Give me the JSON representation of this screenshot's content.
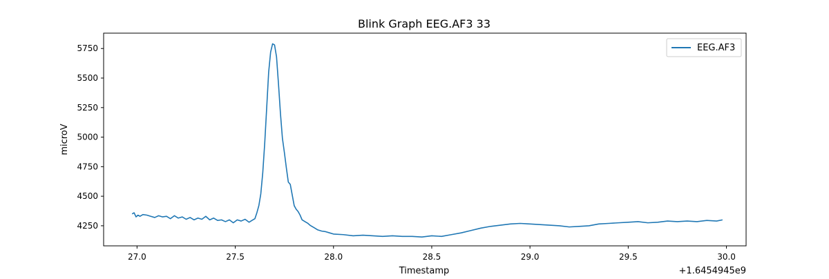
{
  "chart_data": {
    "type": "line",
    "title": "Blink Graph EEG.AF3 33",
    "xlabel": "Timestamp",
    "ylabel": "microV",
    "x_offset_label": "+1.6454945e9",
    "xlim": [
      26.83,
      30.1
    ],
    "ylim": [
      4080,
      5880
    ],
    "x_ticks": [
      27.0,
      27.5,
      28.0,
      28.5,
      29.0,
      29.5,
      30.0
    ],
    "x_tick_labels": [
      "27.0",
      "27.5",
      "28.0",
      "28.5",
      "29.0",
      "29.5",
      "30.0"
    ],
    "y_ticks": [
      4250,
      4500,
      4750,
      5000,
      5250,
      5500,
      5750
    ],
    "y_tick_labels": [
      "4250",
      "4500",
      "4750",
      "5000",
      "5250",
      "5500",
      "5750"
    ],
    "grid": false,
    "legend_position": "top-right",
    "colors": {
      "series": "#1f77b4"
    },
    "series": [
      {
        "name": "EEG.AF3",
        "x": [
          26.975,
          26.985,
          26.995,
          27.005,
          27.015,
          27.03,
          27.05,
          27.07,
          27.09,
          27.11,
          27.13,
          27.15,
          27.17,
          27.19,
          27.21,
          27.23,
          27.25,
          27.27,
          27.29,
          27.31,
          27.33,
          27.35,
          27.37,
          27.39,
          27.41,
          27.43,
          27.45,
          27.47,
          27.49,
          27.51,
          27.53,
          27.55,
          27.57,
          27.59,
          27.6,
          27.61,
          27.62,
          27.63,
          27.64,
          27.65,
          27.66,
          27.67,
          27.68,
          27.69,
          27.7,
          27.71,
          27.72,
          27.73,
          27.74,
          27.75,
          27.76,
          27.77,
          27.78,
          27.79,
          27.8,
          27.81,
          27.82,
          27.83,
          27.84,
          27.85,
          27.86,
          27.87,
          27.88,
          27.89,
          27.9,
          27.92,
          27.94,
          27.96,
          27.98,
          28.0,
          28.05,
          28.1,
          28.15,
          28.2,
          28.25,
          28.3,
          28.35,
          28.4,
          28.45,
          28.5,
          28.55,
          28.6,
          28.65,
          28.7,
          28.75,
          28.8,
          28.85,
          28.9,
          28.95,
          29.0,
          29.05,
          29.1,
          29.15,
          29.2,
          29.25,
          29.3,
          29.35,
          29.4,
          29.45,
          29.5,
          29.55,
          29.6,
          29.65,
          29.7,
          29.75,
          29.8,
          29.85,
          29.9,
          29.95,
          29.98
        ],
        "y": [
          4350,
          4360,
          4325,
          4340,
          4330,
          4345,
          4340,
          4330,
          4320,
          4335,
          4325,
          4330,
          4310,
          4335,
          4315,
          4325,
          4305,
          4320,
          4300,
          4315,
          4305,
          4330,
          4300,
          4315,
          4295,
          4300,
          4285,
          4300,
          4275,
          4300,
          4290,
          4305,
          4280,
          4300,
          4310,
          4360,
          4420,
          4520,
          4700,
          4950,
          5250,
          5550,
          5720,
          5790,
          5780,
          5680,
          5450,
          5200,
          4990,
          4870,
          4740,
          4620,
          4600,
          4510,
          4420,
          4390,
          4370,
          4340,
          4300,
          4290,
          4280,
          4270,
          4255,
          4245,
          4235,
          4215,
          4205,
          4200,
          4190,
          4180,
          4175,
          4165,
          4170,
          4165,
          4160,
          4165,
          4160,
          4160,
          4155,
          4165,
          4160,
          4175,
          4190,
          4210,
          4230,
          4245,
          4255,
          4265,
          4270,
          4265,
          4260,
          4255,
          4250,
          4240,
          4245,
          4250,
          4265,
          4270,
          4275,
          4280,
          4285,
          4275,
          4280,
          4290,
          4285,
          4290,
          4285,
          4295,
          4290,
          4300
        ]
      }
    ]
  }
}
